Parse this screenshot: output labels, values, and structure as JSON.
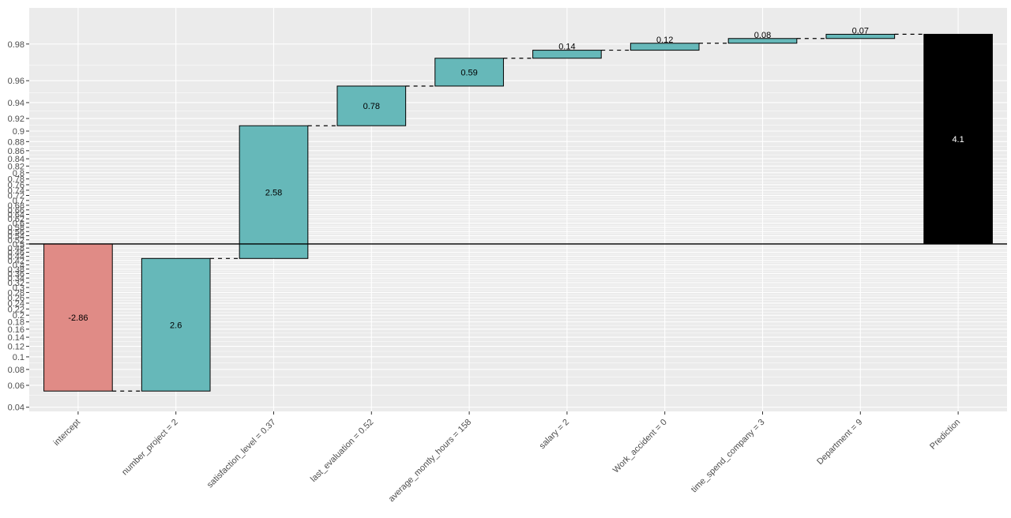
{
  "chart_data": {
    "type": "waterfall",
    "title": "",
    "xlabel": "",
    "ylabel": "",
    "baseline": 0.5,
    "categories": [
      "intercept",
      "number_project = 2",
      "satisfaction_level = 0.37",
      "last_evaluation = 0.52",
      "average_montly_hours = 158",
      "salary = 2",
      "Work_accident = 0",
      "time_spend_company = 3",
      "Department = 9",
      "Prediction"
    ],
    "bars": [
      {
        "label": "-2.86",
        "start": 0.5,
        "end": 0.054,
        "kind": "negative"
      },
      {
        "label": "2.6",
        "start": 0.054,
        "end": 0.43,
        "kind": "positive"
      },
      {
        "label": "2.58",
        "start": 0.43,
        "end": 0.909,
        "kind": "positive"
      },
      {
        "label": "0.78",
        "start": 0.909,
        "end": 0.9558,
        "kind": "positive"
      },
      {
        "label": "0.59",
        "start": 0.9558,
        "end": 0.9738,
        "kind": "positive"
      },
      {
        "label": "0.14",
        "start": 0.9738,
        "end": 0.9775,
        "kind": "positive"
      },
      {
        "label": "0.12",
        "start": 0.9775,
        "end": 0.9803,
        "kind": "positive"
      },
      {
        "label": "0.08",
        "start": 0.9803,
        "end": 0.982,
        "kind": "positive"
      },
      {
        "label": "0.07",
        "start": 0.982,
        "end": 0.9834,
        "kind": "positive"
      },
      {
        "label": "4.1",
        "start": 0.5,
        "end": 0.9834,
        "kind": "prediction"
      }
    ],
    "yticks": [
      0.04,
      0.06,
      0.08,
      0.1,
      0.12,
      0.14,
      0.16,
      0.18,
      0.2,
      0.22,
      0.24,
      0.26,
      0.28,
      0.3,
      0.32,
      0.34,
      0.36,
      0.38,
      0.4,
      0.42,
      0.44,
      0.46,
      0.48,
      0.5,
      0.52,
      0.54,
      0.56,
      0.58,
      0.6,
      0.62,
      0.64,
      0.66,
      0.68,
      0.7,
      0.72,
      0.74,
      0.76,
      0.78,
      0.8,
      0.82,
      0.84,
      0.86,
      0.88,
      0.9,
      0.92,
      0.94,
      0.96,
      0.98
    ],
    "ytick_labels": [
      "0.04",
      "0.06",
      "0.08",
      "0.1",
      "0.12",
      "0.14",
      "0.16",
      "0.18",
      "0.2",
      "0.22",
      "0.24",
      "0.26",
      "0.28",
      "0.3",
      "0.32",
      "0.34",
      "0.36",
      "0.38",
      "0.4",
      "0.42",
      "0.44",
      "0.46",
      "0.48",
      "0.5",
      "0.52",
      "0.54",
      "0.56",
      "0.58",
      "0.6",
      "0.62",
      "0.64",
      "0.66",
      "0.68",
      "0.7",
      "0.72",
      "0.74",
      "0.76",
      "0.78",
      "0.8",
      "0.82",
      "0.84",
      "0.86",
      "0.88",
      "0.9",
      "0.92",
      "0.94",
      "0.96",
      "0.98"
    ],
    "yscale": "logit",
    "ylim": [
      0.037,
      0.99
    ],
    "grid": true,
    "colors": {
      "negative": "#e08b86",
      "positive": "#66b8b9",
      "prediction": "#000000",
      "panel": "#ebebeb",
      "gridline": "#ffffff"
    }
  }
}
